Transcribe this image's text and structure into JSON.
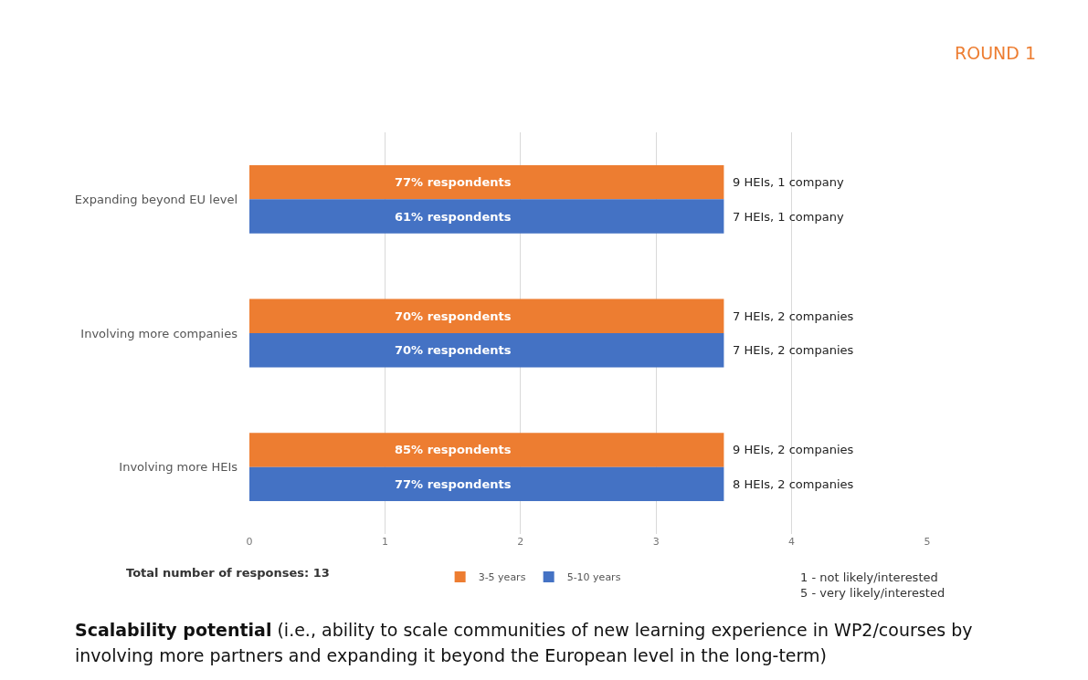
{
  "chart_data": {
    "type": "bar",
    "orientation": "horizontal",
    "title": "Scalability potential",
    "subtitle": "(i.e., ability to scale communities of new learning experience in WP2/courses by involving more partners and expanding it beyond the European level in the long-term)",
    "categories": [
      "Expanding beyond EU level",
      "Involving more companies",
      "Involving more HEIs"
    ],
    "series": [
      {
        "name": "3-5 years",
        "color": "#ed7d31",
        "values": [
          3.5,
          3.5,
          3.5
        ]
      },
      {
        "name": "5-10 years",
        "color": "#4472c4",
        "values": [
          3.5,
          3.5,
          3.5
        ]
      }
    ],
    "xlim": [
      0,
      5
    ],
    "xticks": [
      0,
      1,
      2,
      3,
      4,
      5
    ],
    "grid": "x",
    "legend": "bottom",
    "annotations": [
      "77% respondents",
      "9 HEIs, 1 company",
      "61% respondents",
      "7 HEIs, 1 company",
      "70% respondents",
      "7 HEIs, 2 companies",
      "70% respondents",
      "7 HEIs, 2 companies",
      "85% respondents",
      "9 HEIs, 2 companies",
      "77% respondents",
      "8 HEIs, 2 companies",
      "ROUND 1",
      "Total number of responses: 13",
      "1 - not likely/interested\n5 - very likely/interested"
    ]
  }
}
